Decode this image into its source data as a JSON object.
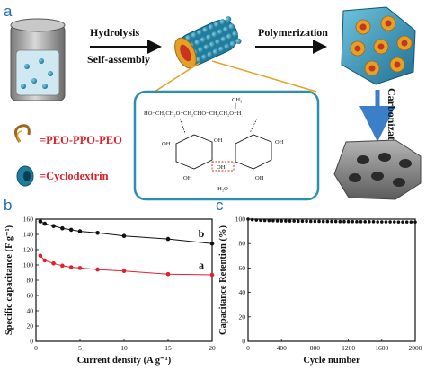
{
  "panel_labels": {
    "a": "a",
    "b": "b",
    "c": "c"
  },
  "scheme": {
    "step_hydrolysis": "Hydrolysis",
    "step_selfassembly": "Self-assembly",
    "step_polymerization": "Polymerization",
    "step_carbonization": "Carbonization",
    "legend_peo": "=PEO-PPO-PEO",
    "legend_cd": "=Cyclodextrin",
    "chem_ch3": "CH₃",
    "chem_chain": "HO−CH₂CH₂O−CH₂CHO−CH₂CH₂O−H",
    "chem_oh": "OH",
    "chem_water": "-H₂O",
    "colors": {
      "legend_text": "#e0202a",
      "rod": "#2a8fb0",
      "arrow": "#4a90d9",
      "carbon": "#8a8a8a"
    }
  },
  "chart_data": [
    {
      "type": "line",
      "panel": "b",
      "xlabel": "Current density (A g⁻¹)",
      "ylabel": "Specific capacitance (F g⁻¹)",
      "xlim": [
        0,
        20
      ],
      "ylim": [
        0,
        160
      ],
      "xticks": [
        "0",
        "5",
        "10",
        "15",
        "20"
      ],
      "yticks": [
        "0",
        "20",
        "40",
        "60",
        "80",
        "100",
        "120",
        "140",
        "160"
      ],
      "series": [
        {
          "name": "b",
          "color": "#111111",
          "x": [
            0.5,
            1,
            2,
            3,
            4,
            5,
            7,
            10,
            15,
            20
          ],
          "y": [
            157,
            154,
            151,
            148,
            146,
            144,
            142,
            138,
            134,
            128
          ]
        },
        {
          "name": "a",
          "color": "#e0202a",
          "x": [
            0.5,
            1,
            2,
            3,
            4,
            5,
            7,
            10,
            15,
            20
          ],
          "y": [
            112,
            106,
            102,
            99,
            97,
            96,
            94,
            92,
            88,
            87
          ]
        }
      ]
    },
    {
      "type": "scatter",
      "panel": "c",
      "xlabel": "Cycle number",
      "ylabel": "Capacitance Retention (%)",
      "xlim": [
        0,
        2000
      ],
      "ylim": [
        0,
        100
      ],
      "xticks": [
        "0",
        "400",
        "800",
        "1200",
        "1600",
        "2000"
      ],
      "yticks": [
        "0",
        "20",
        "40",
        "60",
        "80",
        "100"
      ],
      "series": [
        {
          "name": "",
          "color": "#111111",
          "x": [
            0,
            50,
            100,
            150,
            200,
            250,
            300,
            350,
            400,
            450,
            500,
            550,
            600,
            650,
            700,
            750,
            800,
            850,
            900,
            950,
            1000,
            1050,
            1100,
            1150,
            1200,
            1250,
            1300,
            1350,
            1400,
            1450,
            1500,
            1550,
            1600,
            1650,
            1700,
            1750,
            1800,
            1850,
            1900,
            1950,
            2000
          ],
          "y": [
            100,
            99.5,
            99.2,
            99,
            98.9,
            98.8,
            98.7,
            98.6,
            98.5,
            98.5,
            98.4,
            98.4,
            98.3,
            98.3,
            98.3,
            98.2,
            98.2,
            98.2,
            98.1,
            98.1,
            98.1,
            98.1,
            98,
            98,
            98,
            98,
            97.9,
            97.9,
            97.9,
            97.9,
            97.9,
            97.8,
            97.8,
            97.8,
            97.8,
            97.8,
            97.7,
            97.7,
            97.7,
            97.7,
            97.7
          ]
        }
      ]
    }
  ]
}
